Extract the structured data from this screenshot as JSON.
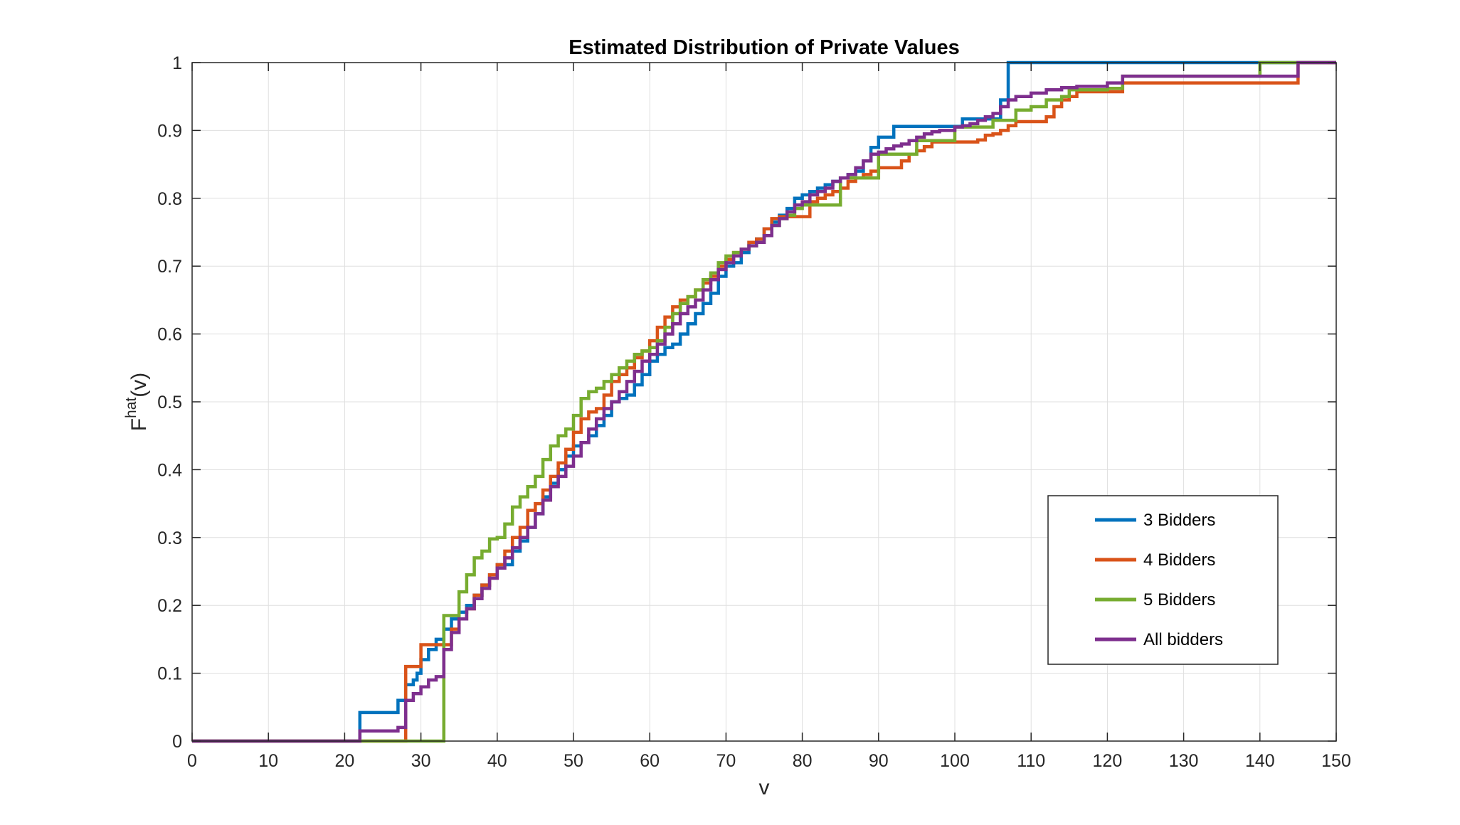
{
  "chart_data": {
    "type": "line",
    "title": "Estimated Distribution of Private Values",
    "xlabel": "v",
    "ylabel": "F",
    "ylabel_superscript": "hat",
    "ylabel_suffix": "(v)",
    "xlim": [
      0,
      150
    ],
    "ylim": [
      0,
      1
    ],
    "xticks": [
      0,
      10,
      20,
      30,
      40,
      50,
      60,
      70,
      80,
      90,
      100,
      110,
      120,
      130,
      140,
      150
    ],
    "yticks": [
      0,
      0.1,
      0.2,
      0.3,
      0.4,
      0.5,
      0.6,
      0.7,
      0.8,
      0.9,
      1
    ],
    "xtick_labels": [
      "0",
      "10",
      "20",
      "30",
      "40",
      "50",
      "60",
      "70",
      "80",
      "90",
      "100",
      "110",
      "120",
      "130",
      "140",
      "150"
    ],
    "ytick_labels": [
      "0",
      "0.1",
      "0.2",
      "0.3",
      "0.4",
      "0.5",
      "0.6",
      "0.7",
      "0.8",
      "0.9",
      "1"
    ],
    "grid": true,
    "legend_position": "lower-right",
    "series": [
      {
        "name": "3 Bidders",
        "color": "#0072BD",
        "x": [
          0,
          22,
          22,
          27,
          27,
          28,
          28,
          29,
          29.5,
          30,
          31,
          32,
          33,
          34,
          35,
          36,
          37,
          38,
          39,
          40,
          41,
          42,
          43,
          44,
          45,
          46,
          47,
          48,
          49,
          50,
          51,
          52,
          53,
          54,
          55,
          56,
          57,
          58,
          59,
          60,
          61,
          62,
          63,
          64,
          65,
          66,
          67,
          68,
          69,
          70,
          71,
          72,
          73,
          74,
          75,
          76,
          77,
          78,
          79,
          80,
          81,
          82,
          83,
          84,
          85,
          86,
          87,
          88,
          89,
          90,
          91,
          92,
          93,
          94,
          95,
          96,
          97,
          98,
          99,
          100,
          101,
          102,
          103,
          104,
          105,
          106,
          107,
          107,
          110,
          120,
          130,
          140,
          145,
          150
        ],
        "y": [
          0,
          0,
          0.042,
          0.042,
          0.06,
          0.06,
          0.083,
          0.09,
          0.1,
          0.12,
          0.135,
          0.15,
          0.165,
          0.18,
          0.19,
          0.2,
          0.215,
          0.23,
          0.245,
          0.26,
          0.26,
          0.28,
          0.295,
          0.315,
          0.335,
          0.36,
          0.38,
          0.4,
          0.42,
          0.435,
          0.44,
          0.45,
          0.465,
          0.48,
          0.5,
          0.505,
          0.51,
          0.525,
          0.54,
          0.56,
          0.57,
          0.58,
          0.585,
          0.6,
          0.615,
          0.63,
          0.645,
          0.66,
          0.685,
          0.7,
          0.705,
          0.72,
          0.735,
          0.74,
          0.755,
          0.765,
          0.775,
          0.785,
          0.8,
          0.805,
          0.81,
          0.815,
          0.82,
          0.825,
          0.83,
          0.835,
          0.84,
          0.855,
          0.875,
          0.89,
          0.89,
          0.906,
          0.906,
          0.906,
          0.906,
          0.906,
          0.906,
          0.906,
          0.906,
          0.906,
          0.917,
          0.917,
          0.917,
          0.917,
          0.917,
          0.945,
          0.965,
          1.0,
          1.0,
          1.0,
          1.0,
          1.0,
          1.0,
          1.0
        ]
      },
      {
        "name": "4 Bidders",
        "color": "#D95319",
        "x": [
          0,
          28,
          28,
          29,
          29,
          30,
          30,
          31,
          32,
          33,
          34,
          34,
          35,
          36,
          37,
          38,
          39,
          40,
          41,
          42,
          43,
          44,
          45,
          46,
          47,
          48,
          49,
          50,
          51,
          52,
          53,
          54,
          55,
          56,
          57,
          58,
          59,
          60,
          61,
          62,
          63,
          64,
          65,
          66,
          67,
          68,
          69,
          70,
          71,
          72,
          73,
          74,
          75,
          76,
          77,
          78,
          79,
          80,
          81,
          82,
          83,
          84,
          85,
          86,
          87,
          88,
          89,
          90,
          91,
          92,
          93,
          94,
          95,
          96,
          97,
          98,
          99,
          100,
          101,
          102,
          103,
          104,
          105,
          106,
          107,
          108,
          109,
          110,
          111,
          112,
          113,
          114,
          115,
          116,
          117,
          118,
          119,
          120,
          121,
          122,
          123,
          124,
          125,
          130,
          140,
          145,
          145,
          150
        ],
        "y": [
          0,
          0,
          0.11,
          0.11,
          0.11,
          0.11,
          0.142,
          0.142,
          0.142,
          0.142,
          0.142,
          0.165,
          0.18,
          0.195,
          0.215,
          0.23,
          0.245,
          0.26,
          0.28,
          0.3,
          0.315,
          0.34,
          0.35,
          0.37,
          0.39,
          0.41,
          0.43,
          0.455,
          0.475,
          0.485,
          0.49,
          0.51,
          0.53,
          0.54,
          0.55,
          0.565,
          0.575,
          0.59,
          0.61,
          0.625,
          0.64,
          0.65,
          0.655,
          0.665,
          0.675,
          0.685,
          0.7,
          0.71,
          0.72,
          0.725,
          0.735,
          0.74,
          0.755,
          0.77,
          0.773,
          0.773,
          0.773,
          0.773,
          0.795,
          0.8,
          0.805,
          0.81,
          0.815,
          0.825,
          0.83,
          0.835,
          0.84,
          0.845,
          0.845,
          0.845,
          0.855,
          0.865,
          0.87,
          0.876,
          0.883,
          0.883,
          0.883,
          0.883,
          0.883,
          0.883,
          0.886,
          0.893,
          0.895,
          0.9,
          0.907,
          0.913,
          0.913,
          0.913,
          0.913,
          0.92,
          0.935,
          0.945,
          0.95,
          0.957,
          0.957,
          0.957,
          0.957,
          0.957,
          0.957,
          0.97,
          0.97,
          0.97,
          0.97,
          0.97,
          0.97,
          0.97,
          1.0,
          1.0
        ]
      },
      {
        "name": "5 Bidders",
        "color": "#77AC30",
        "x": [
          0,
          33,
          33,
          34,
          35,
          35,
          36,
          37,
          37,
          38,
          39,
          40,
          41,
          42,
          43,
          44,
          45,
          46,
          47,
          48,
          49,
          50,
          51,
          52,
          53,
          54,
          55,
          56,
          57,
          58,
          59,
          60,
          61,
          62,
          63,
          64,
          65,
          66,
          67,
          68,
          69,
          70,
          71,
          72,
          73,
          74,
          75,
          76,
          77,
          78,
          79,
          80,
          85,
          90,
          95,
          100,
          105,
          106,
          108,
          110,
          112,
          114,
          115,
          118,
          120,
          122,
          122,
          125,
          130,
          140,
          140,
          145,
          145,
          150
        ],
        "y": [
          0,
          0,
          0.185,
          0.185,
          0.185,
          0.22,
          0.245,
          0.245,
          0.27,
          0.28,
          0.298,
          0.3,
          0.32,
          0.345,
          0.36,
          0.375,
          0.39,
          0.415,
          0.435,
          0.45,
          0.46,
          0.48,
          0.505,
          0.515,
          0.52,
          0.53,
          0.54,
          0.55,
          0.56,
          0.57,
          0.575,
          0.58,
          0.59,
          0.61,
          0.63,
          0.645,
          0.655,
          0.665,
          0.68,
          0.69,
          0.705,
          0.715,
          0.72,
          0.725,
          0.73,
          0.735,
          0.745,
          0.76,
          0.77,
          0.775,
          0.785,
          0.79,
          0.83,
          0.865,
          0.885,
          0.905,
          0.915,
          0.915,
          0.93,
          0.935,
          0.945,
          0.95,
          0.96,
          0.96,
          0.962,
          0.962,
          0.98,
          0.98,
          0.98,
          0.98,
          1.0,
          1.0,
          1.0,
          1.0
        ]
      },
      {
        "name": "All bidders",
        "color": "#7E2F8E",
        "x": [
          0,
          22,
          22,
          27,
          27,
          28,
          28,
          29,
          30,
          31,
          32,
          33,
          33,
          34,
          35,
          36,
          37,
          38,
          39,
          40,
          41,
          42,
          43,
          44,
          45,
          46,
          47,
          48,
          49,
          50,
          51,
          52,
          53,
          54,
          55,
          56,
          57,
          58,
          59,
          60,
          61,
          62,
          63,
          64,
          65,
          66,
          67,
          68,
          69,
          70,
          71,
          72,
          73,
          74,
          75,
          76,
          77,
          78,
          79,
          80,
          81,
          82,
          83,
          84,
          85,
          86,
          87,
          88,
          89,
          90,
          91,
          92,
          93,
          94,
          95,
          96,
          97,
          98,
          99,
          100,
          101,
          102,
          103,
          104,
          105,
          106,
          107,
          108,
          110,
          112,
          114,
          116,
          118,
          120,
          122,
          122,
          130,
          140,
          145,
          145,
          150
        ],
        "y": [
          0,
          0,
          0.015,
          0.015,
          0.02,
          0.02,
          0.06,
          0.07,
          0.08,
          0.09,
          0.095,
          0.1,
          0.135,
          0.16,
          0.18,
          0.195,
          0.21,
          0.225,
          0.24,
          0.255,
          0.27,
          0.285,
          0.3,
          0.315,
          0.335,
          0.355,
          0.375,
          0.39,
          0.405,
          0.42,
          0.44,
          0.46,
          0.475,
          0.49,
          0.5,
          0.515,
          0.53,
          0.545,
          0.56,
          0.57,
          0.585,
          0.6,
          0.615,
          0.63,
          0.64,
          0.65,
          0.665,
          0.68,
          0.695,
          0.705,
          0.715,
          0.725,
          0.73,
          0.735,
          0.745,
          0.76,
          0.77,
          0.78,
          0.79,
          0.795,
          0.805,
          0.81,
          0.815,
          0.825,
          0.83,
          0.835,
          0.845,
          0.855,
          0.865,
          0.868,
          0.873,
          0.877,
          0.88,
          0.885,
          0.89,
          0.895,
          0.898,
          0.9,
          0.9,
          0.905,
          0.907,
          0.91,
          0.915,
          0.92,
          0.925,
          0.935,
          0.945,
          0.95,
          0.955,
          0.96,
          0.963,
          0.965,
          0.965,
          0.97,
          0.97,
          0.98,
          0.98,
          0.98,
          0.99,
          1.0,
          1.0
        ]
      }
    ]
  }
}
